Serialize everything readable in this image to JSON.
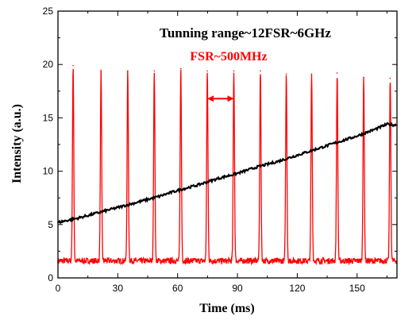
{
  "chart_data": {
    "type": "line",
    "title": "",
    "xlabel": "Time (ms)",
    "ylabel": "Intensity (a.u.)",
    "xlim": [
      0,
      170
    ],
    "ylim": [
      0,
      25
    ],
    "xticks": [
      "0",
      "30",
      "60",
      "90",
      "120",
      "150"
    ],
    "yticks": [
      "0",
      "5",
      "10",
      "15",
      "20",
      "25"
    ],
    "grid": false,
    "legend": "none",
    "annotations": {
      "main": "Tunning range~12FSR~6GHz",
      "fsr": "FSR~500MHz"
    },
    "series": [
      {
        "color": "#000000",
        "style": "ramp",
        "x": [
          0,
          10,
          20,
          30,
          40,
          50,
          60,
          70,
          80,
          90,
          100,
          110,
          120,
          130,
          140,
          150,
          160,
          165,
          170
        ],
        "values": [
          5.2,
          5.6,
          6.1,
          6.6,
          7.1,
          7.6,
          8.2,
          8.7,
          9.3,
          9.8,
          10.4,
          10.9,
          11.5,
          12.1,
          12.7,
          13.3,
          14.0,
          14.4,
          14.3
        ]
      },
      {
        "color": "#ff0000",
        "style": "peaks",
        "baseline": 1.6,
        "peaks_x": [
          7.6,
          21.6,
          35.0,
          48.3,
          61.6,
          74.9,
          88.2,
          101.5,
          114.5,
          127.2,
          140.0,
          153.3,
          166.6
        ],
        "peaks_y": [
          19.9,
          19.3,
          19.4,
          19.4,
          19.6,
          19.4,
          19.4,
          19.4,
          19.1,
          19.1,
          19.2,
          18.8,
          18.7
        ]
      }
    ],
    "fsr_arrow": {
      "x1": 74.9,
      "x2": 88.2,
      "y": 16.8
    }
  }
}
